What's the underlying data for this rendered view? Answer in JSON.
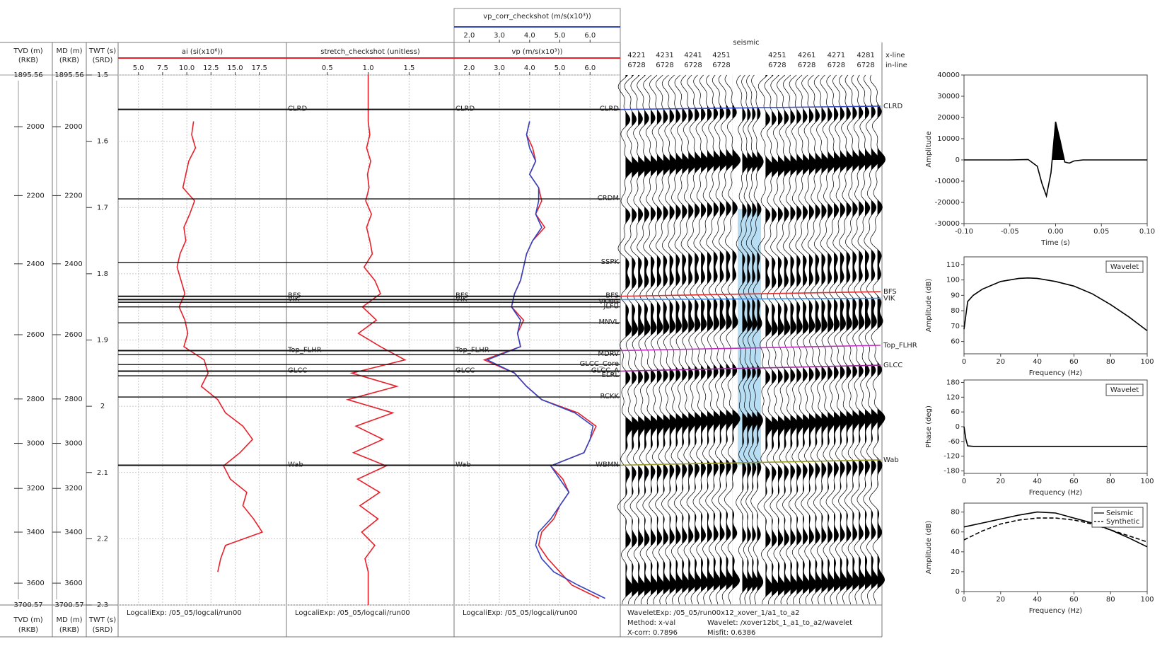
{
  "chart_data": [
    {
      "type": "well_tie",
      "depth_axes": [
        {
          "label": "TVD (m)",
          "sublabel": "(RKB)",
          "top": 1895.56,
          "bottom": 3700.57
        },
        {
          "label": "MD (m)",
          "sublabel": "(RKB)",
          "top": 1895.56,
          "bottom": 3700.57
        }
      ],
      "depth_ticks": [
        2000,
        2200,
        2400,
        2600,
        2800,
        3000,
        3200,
        3400,
        3600
      ],
      "depth_ticks_twt": [
        1.578,
        1.682,
        1.785,
        1.892,
        1.989,
        2.056,
        2.124,
        2.19,
        2.267
      ],
      "twt_axis": {
        "label": "TWT (s)",
        "sublabel": "(SRD)"
      },
      "ylim": [
        1.5,
        2.3
      ],
      "yticks": [
        1.5,
        1.6,
        1.7,
        1.8,
        1.9,
        2,
        2.1,
        2.2,
        2.3
      ],
      "grid": true,
      "twt": [
        1.57,
        1.59,
        1.61,
        1.63,
        1.65,
        1.67,
        1.69,
        1.71,
        1.73,
        1.75,
        1.77,
        1.79,
        1.81,
        1.83,
        1.85,
        1.87,
        1.89,
        1.91,
        1.93,
        1.95,
        1.97,
        1.99,
        2.01,
        2.03,
        2.05,
        2.07,
        2.09,
        2.11,
        2.13,
        2.15,
        2.17,
        2.19,
        2.21,
        2.23,
        2.25,
        2.27,
        2.29
      ],
      "tracks": [
        {
          "xlim": [
            2.9,
            20.3
          ],
          "xticks": [
            {
              "value": 5,
              "label": "5.0"
            },
            7.5,
            {
              "value": 10,
              "label": "10.0"
            },
            12.5,
            {
              "value": 15,
              "label": "15.0"
            },
            17.5
          ],
          "footer": "LogcaliExp: /05_05/logcali/run00",
          "curves": [
            {
              "title": "ai (si(x10⁶))",
              "color": "#e8202a",
              "values": [
                10.7,
                10.5,
                10.9,
                10.2,
                9.9,
                9.6,
                10.8,
                10.3,
                9.7,
                9.9,
                9.3,
                9.0,
                9.4,
                9.8,
                9.2,
                9.8,
                10.1,
                9.7,
                11.8,
                12.2,
                11.5,
                13.2,
                14.0,
                15.8,
                16.8,
                15.5,
                13.8,
                14.5,
                16.2,
                15.8,
                16.9,
                17.8,
                14.0,
                13.5,
                13.2,
                null,
                null
              ]
            }
          ]
        },
        {
          "xlim": [
            0,
            2.05
          ],
          "xticks": [
            0.5,
            {
              "value": 1,
              "label": "1.0"
            },
            1.5
          ],
          "footer": "LogcaliExp: /05_05/logcali/run00",
          "curves": [
            {
              "title": "stretch_checkshot (unitless)",
              "color": "#e8202a",
              "twt": [
                1.5,
                1.57,
                1.59,
                1.61,
                1.63,
                1.65,
                1.67,
                1.69,
                1.71,
                1.73,
                1.75,
                1.77,
                1.79,
                1.81,
                1.83,
                1.85,
                1.87,
                1.89,
                1.91,
                1.93,
                1.95,
                1.97,
                1.99,
                2.01,
                2.03,
                2.05,
                2.07,
                2.09,
                2.11,
                2.13,
                2.15,
                2.17,
                2.19,
                2.21,
                2.23,
                2.25,
                2.3
              ],
              "values": [
                1.0,
                1.0,
                1.02,
                0.98,
                1.03,
                0.99,
                1.01,
                0.97,
                1.04,
                0.98,
                1.02,
                1.05,
                0.95,
                1.08,
                1.15,
                0.93,
                1.1,
                0.88,
                1.15,
                1.45,
                0.8,
                1.35,
                0.75,
                1.3,
                0.85,
                1.18,
                0.82,
                1.22,
                0.87,
                1.14,
                0.9,
                1.12,
                0.92,
                1.08,
                0.96,
                1.0,
                1.0
              ]
            }
          ]
        },
        {
          "xlim": [
            1.5,
            7.0
          ],
          "xticks": [
            {
              "value": 2,
              "label": "2.0"
            },
            {
              "value": 3,
              "label": "3.0"
            },
            {
              "value": 4,
              "label": "4.0"
            },
            {
              "value": 5,
              "label": "5.0"
            },
            {
              "value": 6,
              "label": "6.0"
            }
          ],
          "footer": "LogcaliExp: /05_05/logcali/run00",
          "curves": [
            {
              "title": "vp (m/s(x10³))",
              "color": "#e8202a",
              "values": [
                4.0,
                3.9,
                4.1,
                4.2,
                4.0,
                4.3,
                4.4,
                4.2,
                4.5,
                4.1,
                3.9,
                3.8,
                3.7,
                3.5,
                3.4,
                3.8,
                3.6,
                3.7,
                2.5,
                3.5,
                3.9,
                4.4,
                5.6,
                6.2,
                6.0,
                5.8,
                4.7,
                5.1,
                5.3,
                5.0,
                4.8,
                4.4,
                4.3,
                4.6,
                5.0,
                5.4,
                6.3
              ]
            },
            {
              "title": "vp_corr_checkshot (m/s(x10³))",
              "color": "#3344c0",
              "values": [
                4.0,
                3.9,
                4.0,
                4.2,
                4.0,
                4.3,
                4.3,
                4.2,
                4.4,
                4.1,
                3.9,
                3.8,
                3.7,
                3.5,
                3.4,
                3.7,
                3.6,
                3.7,
                2.6,
                3.5,
                3.9,
                4.4,
                5.5,
                6.1,
                6.0,
                5.8,
                4.7,
                5.0,
                5.3,
                5.0,
                4.7,
                4.3,
                4.2,
                4.4,
                4.8,
                5.6,
                6.5
              ]
            }
          ]
        }
      ],
      "horizons": [
        {
          "name": "CLRD",
          "twt": 1.552
        },
        {
          "name": "CRDM",
          "twt": 1.687
        },
        {
          "name": "SSPK",
          "twt": 1.783
        },
        {
          "name": "BFS",
          "twt": 1.834
        },
        {
          "name": "VKNG",
          "twt": 1.843
        },
        {
          "name": "JLFU",
          "twt": 1.85
        },
        {
          "name": "MNVL",
          "twt": 1.874
        },
        {
          "name": "MDRV",
          "twt": 1.922
        },
        {
          "name": "GLCC_Core",
          "twt": 1.937
        },
        {
          "name": "GLCC_A",
          "twt": 1.947
        },
        {
          "name": "ELRL",
          "twt": 1.954
        },
        {
          "name": "RCKK",
          "twt": 1.986
        },
        {
          "name": "WBMN",
          "twt": 2.089
        }
      ],
      "well_markers": [
        {
          "name": "CLRD",
          "twt": 1.552,
          "twt_right": 1.547,
          "color": "#3a4cc0"
        },
        {
          "name": "BFS",
          "twt": 1.834,
          "twt_right": 1.827,
          "color": "#e03030"
        },
        {
          "name": "VIK",
          "twt": 1.839,
          "twt_right": 1.837,
          "color": "#4a8fe0"
        },
        {
          "name": "Top_FLHR",
          "twt": 1.916,
          "twt_right": 1.908,
          "color": "#c030c0"
        },
        {
          "name": "GLCC",
          "twt": 1.947,
          "twt_right": 1.938,
          "color": "#9a2a9a"
        },
        {
          "name": "Wab",
          "twt": 2.089,
          "twt_right": 2.081,
          "color": "#9a9a2a"
        }
      ],
      "seismic": {
        "title": "seismic",
        "xline_label": "x-line",
        "inline_label": "in-line",
        "xlines": [
          4221,
          4231,
          4241,
          4251,
          4251,
          4261,
          4271,
          4281
        ],
        "inlines": [
          6728,
          6728,
          6728,
          6728,
          6728,
          6728,
          6728,
          6728
        ],
        "window": [
          1.702,
          2.089
        ],
        "footer": [
          "WaveletExp: /05_05/run00x12_xover_1/a1_to_a2",
          "Method: x-val",
          "Wavelet: /xover12bt_1_a1_to_a2/wavelet",
          "X-corr: 0.7896",
          "Misfit: 0.6386"
        ]
      }
    },
    {
      "type": "line",
      "xlabel": "Time (s)",
      "ylabel": "Amplitude",
      "x": [
        -0.1,
        -0.05,
        -0.03,
        -0.02,
        -0.015,
        -0.01,
        -0.005,
        0,
        0.005,
        0.01,
        0.015,
        0.02,
        0.03,
        0.05,
        0.1
      ],
      "series": [
        {
          "color": "#000000",
          "values": [
            0,
            0,
            200,
            -3000,
            -11000,
            -17000,
            -6000,
            18000,
            9000,
            -1000,
            -1500,
            -500,
            0,
            0,
            0
          ]
        }
      ],
      "fill_positive": true,
      "xlim": [
        -0.1,
        0.1
      ],
      "xticks": [
        {
          "value": -0.1,
          "label": "-0.10"
        },
        {
          "value": -0.05,
          "label": "-0.05"
        },
        {
          "value": 0,
          "label": "0.00"
        },
        {
          "value": 0.05,
          "label": "0.05"
        },
        {
          "value": 0.1,
          "label": "0.10"
        }
      ],
      "ylim": [
        -30000,
        40000
      ],
      "yticks": [
        -30000,
        -20000,
        -10000,
        0,
        10000,
        20000,
        30000,
        40000
      ]
    },
    {
      "type": "line",
      "xlabel": "Frequency (Hz)",
      "ylabel": "Amplitude (dB)",
      "x": [
        0,
        2,
        5,
        10,
        20,
        30,
        35,
        40,
        50,
        60,
        70,
        80,
        90,
        100
      ],
      "series": [
        {
          "name": "Wavelet",
          "color": "#000000",
          "values": [
            68,
            86,
            90,
            94,
            99,
            101,
            101.3,
            101,
            99,
            96,
            91,
            84,
            76,
            67
          ]
        }
      ],
      "legend": "upper right",
      "xlim": [
        0,
        100
      ],
      "xticks": [
        0,
        20,
        40,
        60,
        80,
        100
      ],
      "ylim": [
        52,
        115
      ],
      "yticks": [
        60,
        70,
        80,
        90,
        100,
        110
      ]
    },
    {
      "type": "line",
      "xlabel": "Frequency (Hz)",
      "ylabel": "Phase (deg)",
      "x": [
        0,
        1,
        2,
        5,
        20,
        40,
        60,
        80,
        100
      ],
      "series": [
        {
          "name": "Wavelet",
          "color": "#000000",
          "values": [
            0,
            -50,
            -78,
            -80,
            -80,
            -80,
            -80,
            -80,
            -80
          ]
        }
      ],
      "legend": "upper right",
      "xlim": [
        0,
        100
      ],
      "xticks": [
        0,
        20,
        40,
        60,
        80,
        100
      ],
      "ylim": [
        -190,
        190
      ],
      "yticks": [
        -180,
        -120,
        -60,
        0,
        60,
        120,
        180
      ]
    },
    {
      "type": "line",
      "xlabel": "Frequency (Hz)",
      "ylabel": "Amplitude (dB)",
      "x": [
        0,
        10,
        20,
        30,
        40,
        50,
        60,
        70,
        80,
        90,
        100
      ],
      "series": [
        {
          "name": "Seismic",
          "color": "#000000",
          "values": [
            65,
            69,
            73,
            77,
            80,
            79,
            74,
            69,
            62,
            54,
            45
          ]
        },
        {
          "name": "Synthetic",
          "color": "#000000",
          "dash": true,
          "values": [
            52,
            61,
            68,
            72,
            74,
            74,
            72,
            68,
            62,
            56,
            50
          ]
        }
      ],
      "legend": "upper right",
      "xlim": [
        0,
        100
      ],
      "xticks": [
        0,
        20,
        40,
        60,
        80,
        100
      ],
      "ylim": [
        0,
        89
      ],
      "yticks": [
        0,
        20,
        40,
        60,
        80
      ]
    }
  ]
}
